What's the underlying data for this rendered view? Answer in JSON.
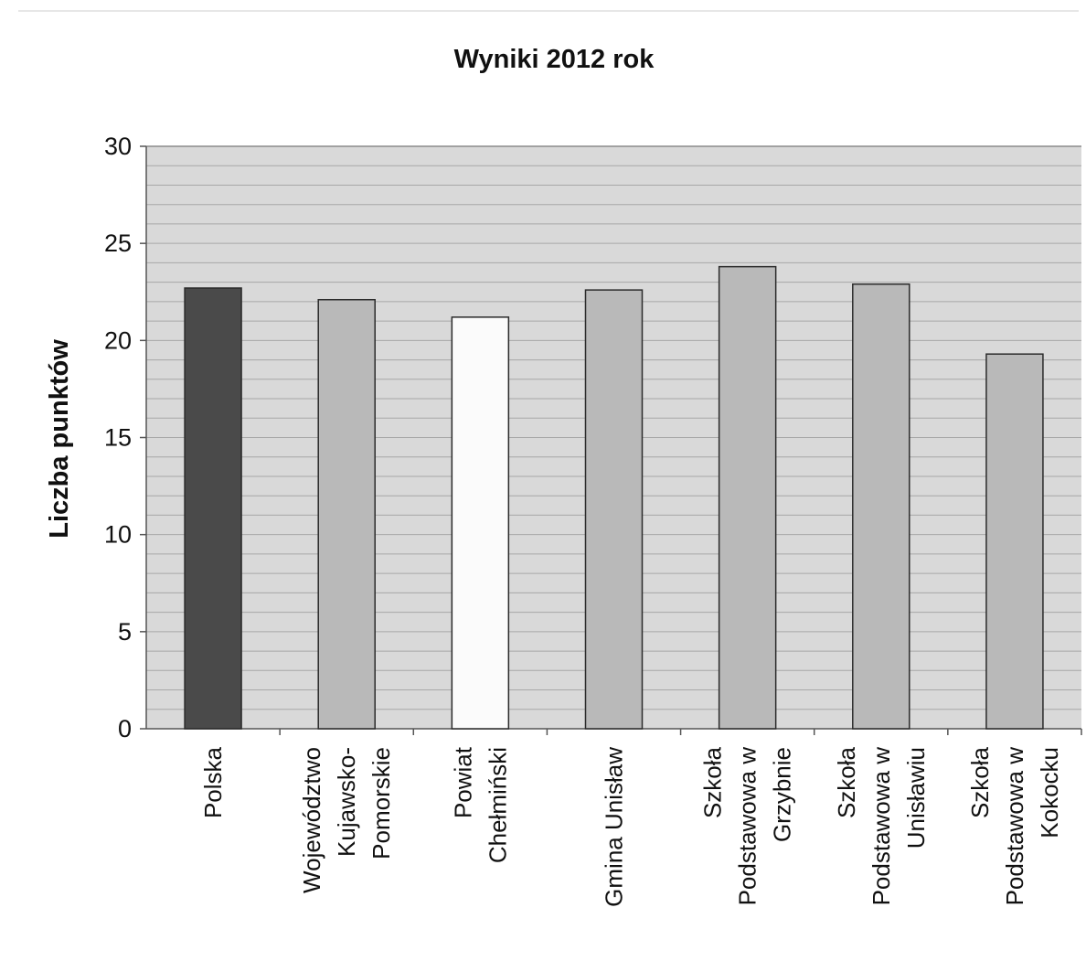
{
  "chart_data": {
    "type": "bar",
    "title": "Wyniki 2012 rok",
    "xlabel": "",
    "ylabel": "Liczba punktów",
    "ylim": [
      0,
      30
    ],
    "yticks": [
      0,
      5,
      10,
      15,
      20,
      25,
      30
    ],
    "grid": true,
    "legend": "none",
    "categories": [
      [
        "Polska"
      ],
      [
        "Województwo",
        "Kujawsko-",
        "Pomorskie"
      ],
      [
        "Powiat",
        "Chełmiński"
      ],
      [
        "Gmina Unisław"
      ],
      [
        "Szkoła",
        "Podstawowa w",
        "Grzybnie"
      ],
      [
        "Szkoła",
        "Podstawowa w",
        "Unisławiu"
      ],
      [
        "Szkoła",
        "Podstawowa w",
        "Kokocku"
      ]
    ],
    "values": [
      22.7,
      22.1,
      21.2,
      22.6,
      23.8,
      22.9,
      19.3
    ],
    "colors": [
      "#4a4a4a",
      "#b9b9b9",
      "#fbfbfb",
      "#b9b9b9",
      "#b9b9b9",
      "#b9b9b9",
      "#b9b9b9"
    ],
    "plot_background": "#d9d9d9",
    "gridline_color": "#a8a8a8"
  }
}
